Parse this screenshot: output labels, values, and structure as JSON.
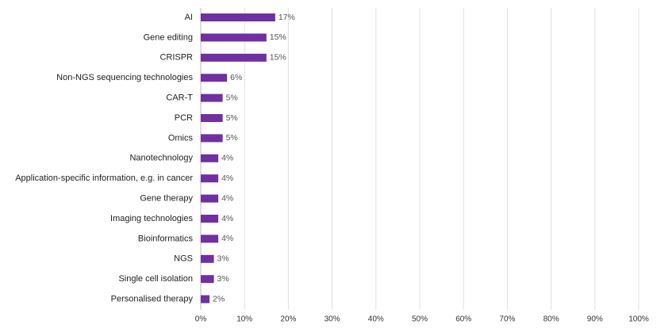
{
  "chart_data": {
    "type": "bar",
    "orientation": "horizontal",
    "color": "#7030a0",
    "grid": true,
    "categories": [
      "AI",
      "Gene editing",
      "CRISPR",
      "Non-NGS sequencing technologies",
      "CAR-T",
      "PCR",
      "Omics",
      "Nanotechnology",
      "Application-specific information, e.g. in cancer",
      "Gene therapy",
      "Imaging technologies",
      "Bioinformatics",
      "NGS",
      "Single cell isolation",
      "Personalised therapy"
    ],
    "values": [
      17,
      15,
      15,
      6,
      5,
      5,
      5,
      4,
      4,
      4,
      4,
      4,
      3,
      3,
      2
    ],
    "value_labels": [
      "17%",
      "15%",
      "15%",
      "6%",
      "5%",
      "5%",
      "5%",
      "4%",
      "4%",
      "4%",
      "4%",
      "4%",
      "3%",
      "3%",
      "2%"
    ],
    "xlim": [
      0,
      100
    ],
    "xticks": [
      {
        "value": 0,
        "label": "0%"
      },
      {
        "value": 10,
        "label": "10%"
      },
      {
        "value": 20,
        "label": "20%"
      },
      {
        "value": 30,
        "label": "30%"
      },
      {
        "value": 40,
        "label": "40%"
      },
      {
        "value": 50,
        "label": "50%"
      },
      {
        "value": 60,
        "label": "60%"
      },
      {
        "value": 70,
        "label": "70%"
      },
      {
        "value": 80,
        "label": "80%"
      },
      {
        "value": 90,
        "label": "90%"
      },
      {
        "value": 100,
        "label": "100%"
      }
    ]
  }
}
